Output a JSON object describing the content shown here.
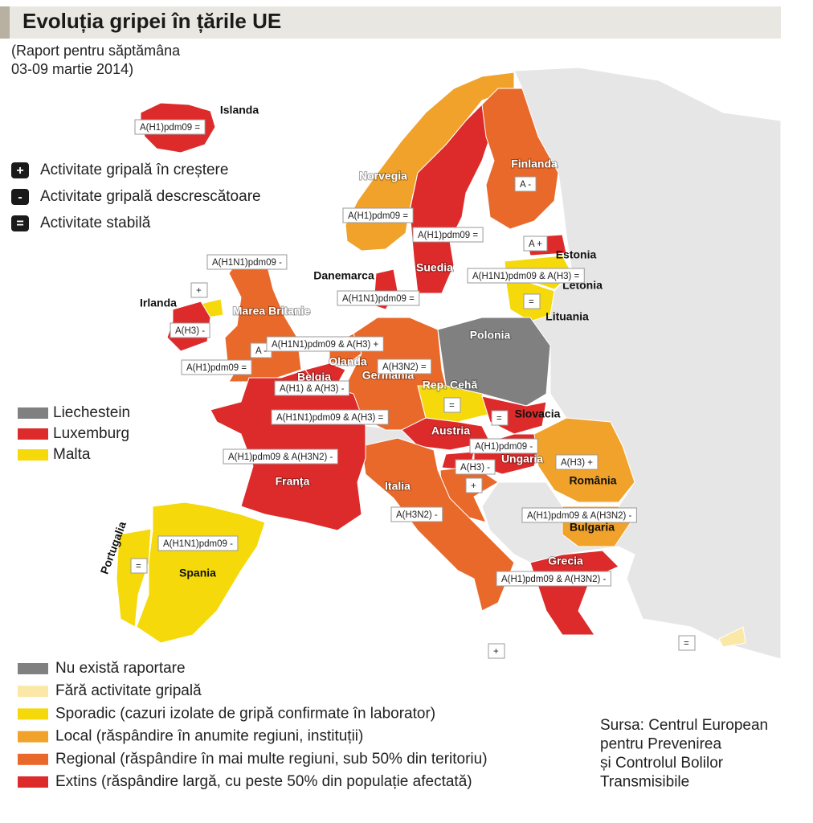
{
  "header": {
    "title": "Evoluția gripei în țările UE",
    "subtitle": [
      "(Raport pentru săptămâna",
      "03-09 martie 2014)"
    ]
  },
  "trend_legend": [
    {
      "symbol": "+",
      "label": "Activitate gripală în creștere"
    },
    {
      "symbol": "-",
      "label": "Activitate gripală descrescătoare"
    },
    {
      "symbol": "=",
      "label": "Activitate stabilă"
    }
  ],
  "small_states": [
    {
      "name": "Liechestein",
      "color": "#808080"
    },
    {
      "name": "Luxemburg",
      "color": "#dd2a2a"
    },
    {
      "name": "Malta",
      "color": "#f5d90a"
    }
  ],
  "intensity_legend": [
    {
      "label": "Nu există raportare",
      "color": "#808080"
    },
    {
      "label": "Fără activitate gripală",
      "color": "#fbe8a6"
    },
    {
      "label": "Sporadic (cazuri izolate de gripă confirmate în laborator)",
      "color": "#f5d90a"
    },
    {
      "label": "Local (răspândire în anumite regiuni, instituții)",
      "color": "#f0a22a"
    },
    {
      "label": "Regional (răspândire în mai multe regiuni, sub 50% din teritoriu)",
      "color": "#e8692a"
    },
    {
      "label": "Extins (răspândire largă, cu peste 50% din populație afectată)",
      "color": "#dd2a2a"
    }
  ],
  "countries": [
    {
      "name": "Islanda",
      "color": "#dd2a2a"
    },
    {
      "name": "Norvegia",
      "color": "#f0a22a"
    },
    {
      "name": "Suedia",
      "color": "#dd2a2a"
    },
    {
      "name": "Finlanda",
      "color": "#e8692a"
    },
    {
      "name": "Estonia",
      "color": "#dd2a2a"
    },
    {
      "name": "Letonia",
      "color": "#f5d90a"
    },
    {
      "name": "Lituania",
      "color": "#f5d90a"
    },
    {
      "name": "Danemarca",
      "color": "#dd2a2a"
    },
    {
      "name": "Irlanda",
      "color": "#dd2a2a"
    },
    {
      "name": "Marea Britanie",
      "color": "#e8692a"
    },
    {
      "name": "Olanda",
      "color": "#e8692a"
    },
    {
      "name": "Belgia",
      "color": "#dd2a2a"
    },
    {
      "name": "Germania",
      "color": "#e8692a"
    },
    {
      "name": "Polonia",
      "color": "#808080"
    },
    {
      "name": "Rep. Cehă",
      "color": "#f5d90a"
    },
    {
      "name": "Slovacia",
      "color": "#dd2a2a"
    },
    {
      "name": "Austria",
      "color": "#dd2a2a"
    },
    {
      "name": "Ungaria",
      "color": "#dd2a2a"
    },
    {
      "name": "România",
      "color": "#f0a22a"
    },
    {
      "name": "Bulgaria",
      "color": "#f0a22a"
    },
    {
      "name": "Grecia",
      "color": "#dd2a2a"
    },
    {
      "name": "Italia",
      "color": "#e8692a"
    },
    {
      "name": "Franța",
      "color": "#dd2a2a"
    },
    {
      "name": "Spania",
      "color": "#f5d90a"
    },
    {
      "name": "Portugalia",
      "color": "#f5d90a"
    }
  ],
  "tags": [
    "A(H1)pdm09 =",
    "A(H1)pdm09 =",
    "A(H1)pdm09 =",
    "A -",
    "A +",
    "A(H1N1)pdm09 & A(H3) =",
    "=",
    "A(H1N1)pdm09 -",
    "+",
    "A(H1N1)pdm09 =",
    "A(H3) -",
    "A -",
    "A(H1N1)pdm09 & A(H3) +",
    "A(H1)pdm09 =",
    "A(H3N2) =",
    "A(H1) & A(H3) -",
    "A(H1N1)pdm09 & A(H3) =",
    "=",
    "=",
    "A(H1)pdm09 -",
    "A(H1)pdm09 & A(H3N2) -",
    "A(H3) -",
    "A(H3) +",
    "+",
    "A(H3N2) -",
    "A(H1)pdm09 & A(H3N2) -",
    "A(H1N1)pdm09 -",
    "=",
    "A(H1)pdm09 & A(H3N2) -",
    "+",
    "="
  ],
  "source": [
    "Sursa: Centrul European",
    "pentru Prevenirea",
    "și Controlul Bolilor",
    "Transmisibile"
  ]
}
